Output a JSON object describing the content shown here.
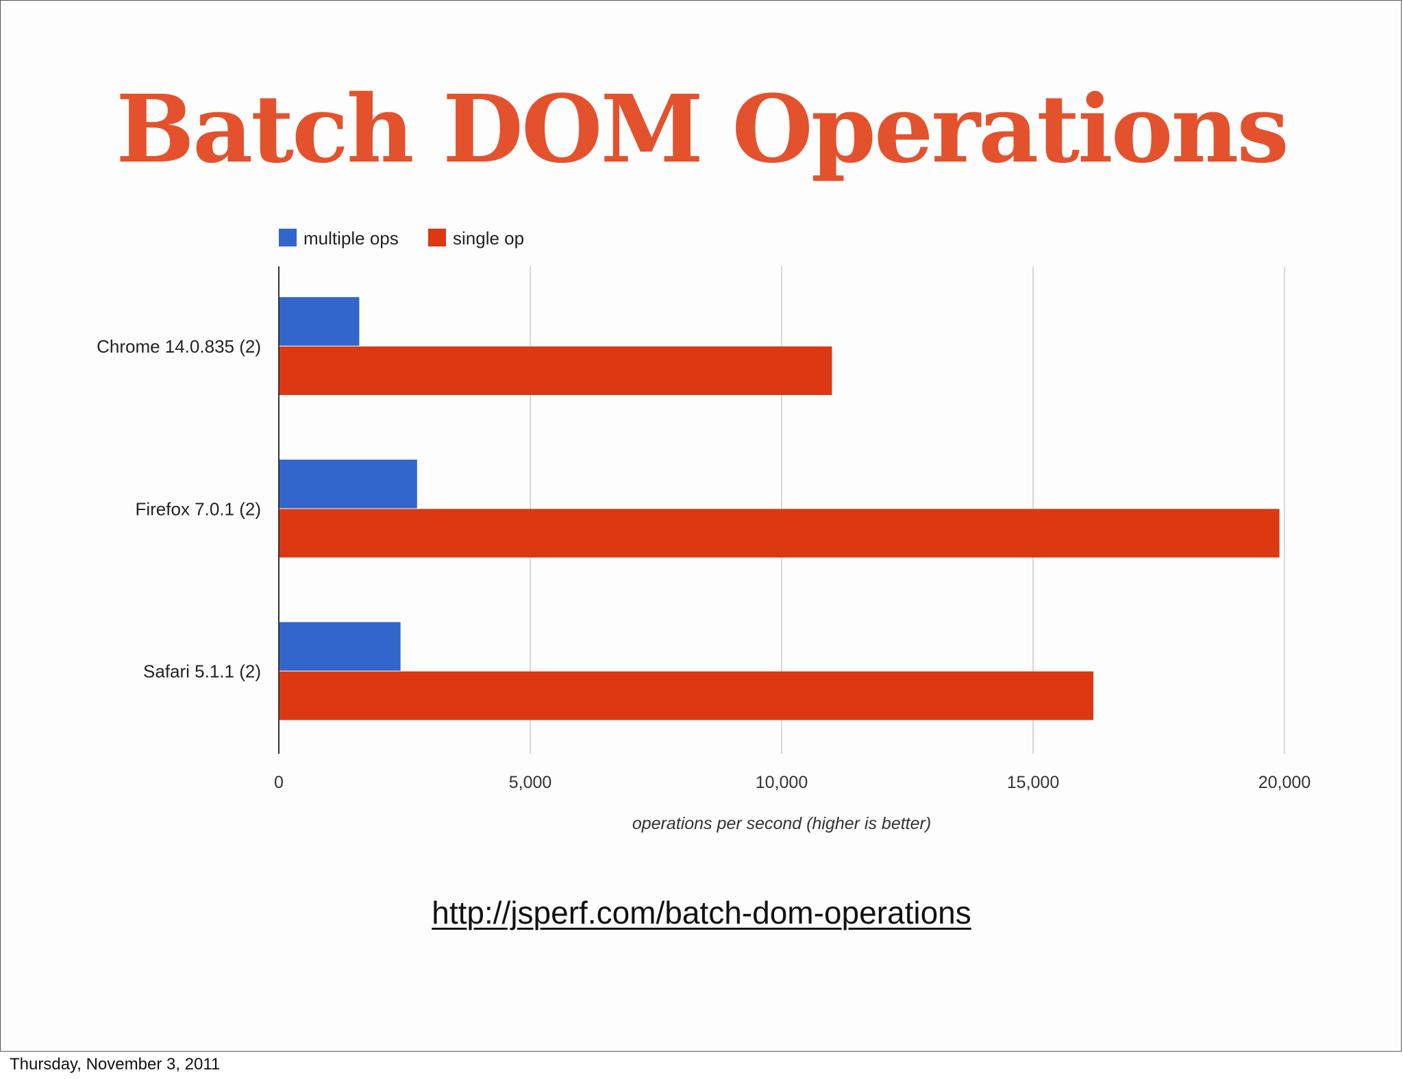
{
  "slide": {
    "title": "Batch DOM Operations",
    "link": "http://jsperf.com/batch-dom-operations",
    "footer_date": "Thursday, November 3, 2011",
    "title_color": "#e4522d"
  },
  "chart_data": {
    "type": "bar",
    "orientation": "horizontal",
    "categories": [
      "Chrome 14.0.835 (2)",
      "Firefox 7.0.1 (2)",
      "Safari 5.1.1 (2)"
    ],
    "series": [
      {
        "name": "multiple ops",
        "color": "#3366cc",
        "values": [
          1600,
          2750,
          2420
        ]
      },
      {
        "name": "single op",
        "color": "#dc3912",
        "values": [
          11000,
          19900,
          16200
        ]
      }
    ],
    "xlim": [
      0,
      20000
    ],
    "xticks": [
      0,
      5000,
      10000,
      15000,
      20000
    ],
    "xtick_labels": [
      "0",
      "5,000",
      "10,000",
      "15,000",
      "20,000"
    ],
    "xlabel": "operations per second (higher is better)",
    "ylabel": "",
    "title": "",
    "legend_position": "top-left",
    "grid": true
  }
}
